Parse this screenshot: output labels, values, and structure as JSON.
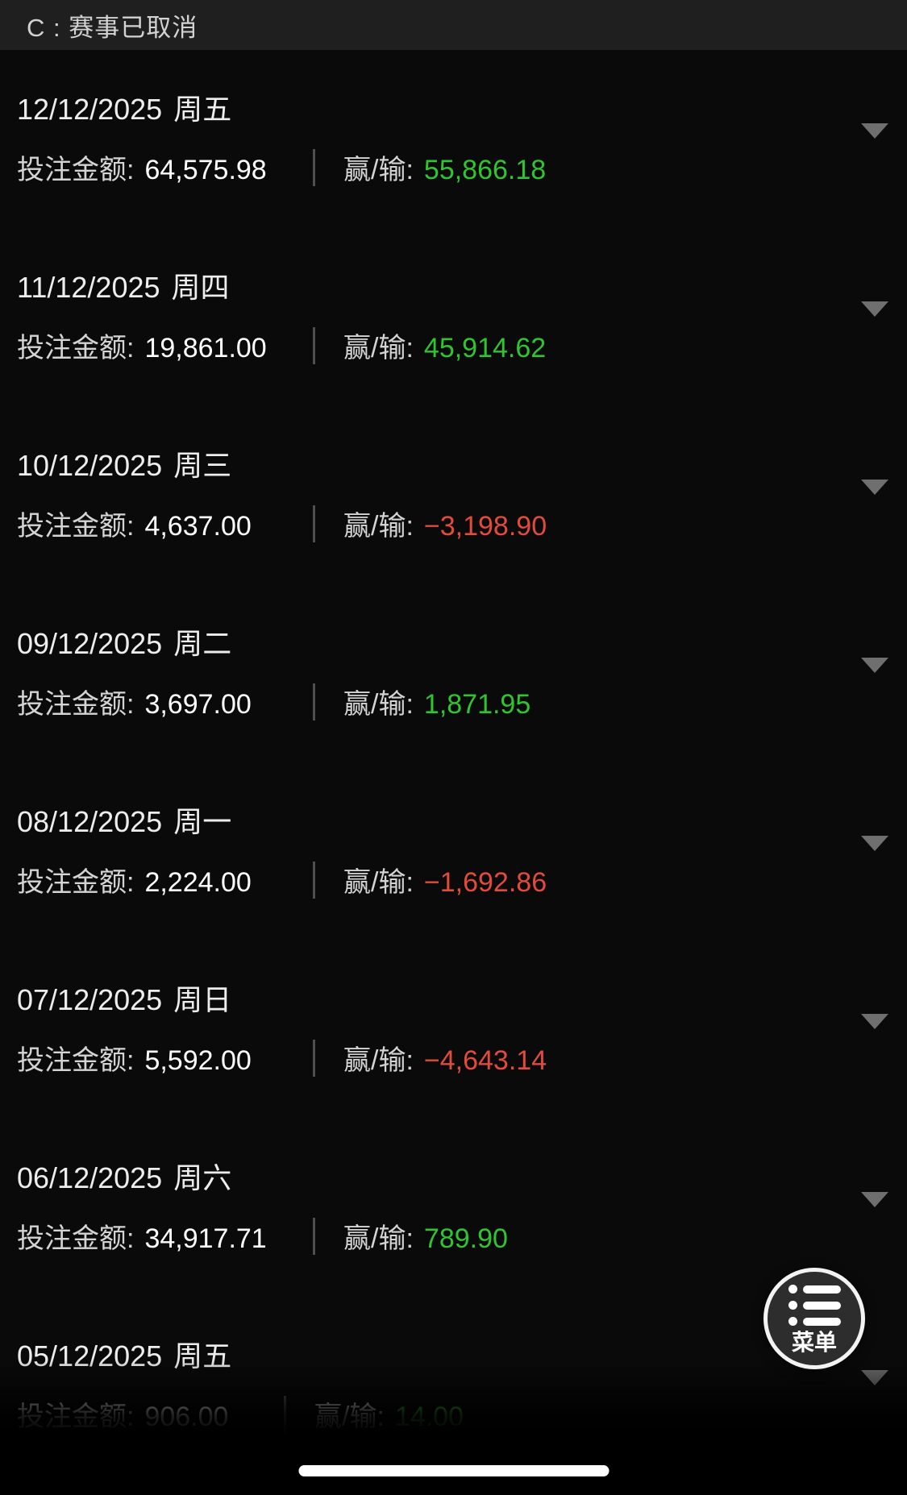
{
  "header": {
    "legend": "C : 赛事已取消"
  },
  "labels": {
    "bet": "投注金额:",
    "win_loss": "赢/输:"
  },
  "colors": {
    "win": "#31c431",
    "loss": "#e24b3c"
  },
  "days": [
    {
      "date": "12/12/2025",
      "weekday": "周五",
      "bet_amount": "64,575.98",
      "win_loss": "55,866.18",
      "result": "positive"
    },
    {
      "date": "11/12/2025",
      "weekday": "周四",
      "bet_amount": "19,861.00",
      "win_loss": "45,914.62",
      "result": "positive"
    },
    {
      "date": "10/12/2025",
      "weekday": "周三",
      "bet_amount": "4,637.00",
      "win_loss": "−3,198.90",
      "result": "negative"
    },
    {
      "date": "09/12/2025",
      "weekday": "周二",
      "bet_amount": "3,697.00",
      "win_loss": "1,871.95",
      "result": "positive"
    },
    {
      "date": "08/12/2025",
      "weekday": "周一",
      "bet_amount": "2,224.00",
      "win_loss": "−1,692.86",
      "result": "negative"
    },
    {
      "date": "07/12/2025",
      "weekday": "周日",
      "bet_amount": "5,592.00",
      "win_loss": "−4,643.14",
      "result": "negative"
    },
    {
      "date": "06/12/2025",
      "weekday": "周六",
      "bet_amount": "34,917.71",
      "win_loss": "789.90",
      "result": "positive"
    },
    {
      "date": "05/12/2025",
      "weekday": "周五",
      "bet_amount": "906.00",
      "win_loss": "14.00",
      "result": "positive",
      "compact": true
    }
  ],
  "menu_button": {
    "label": "菜单"
  }
}
